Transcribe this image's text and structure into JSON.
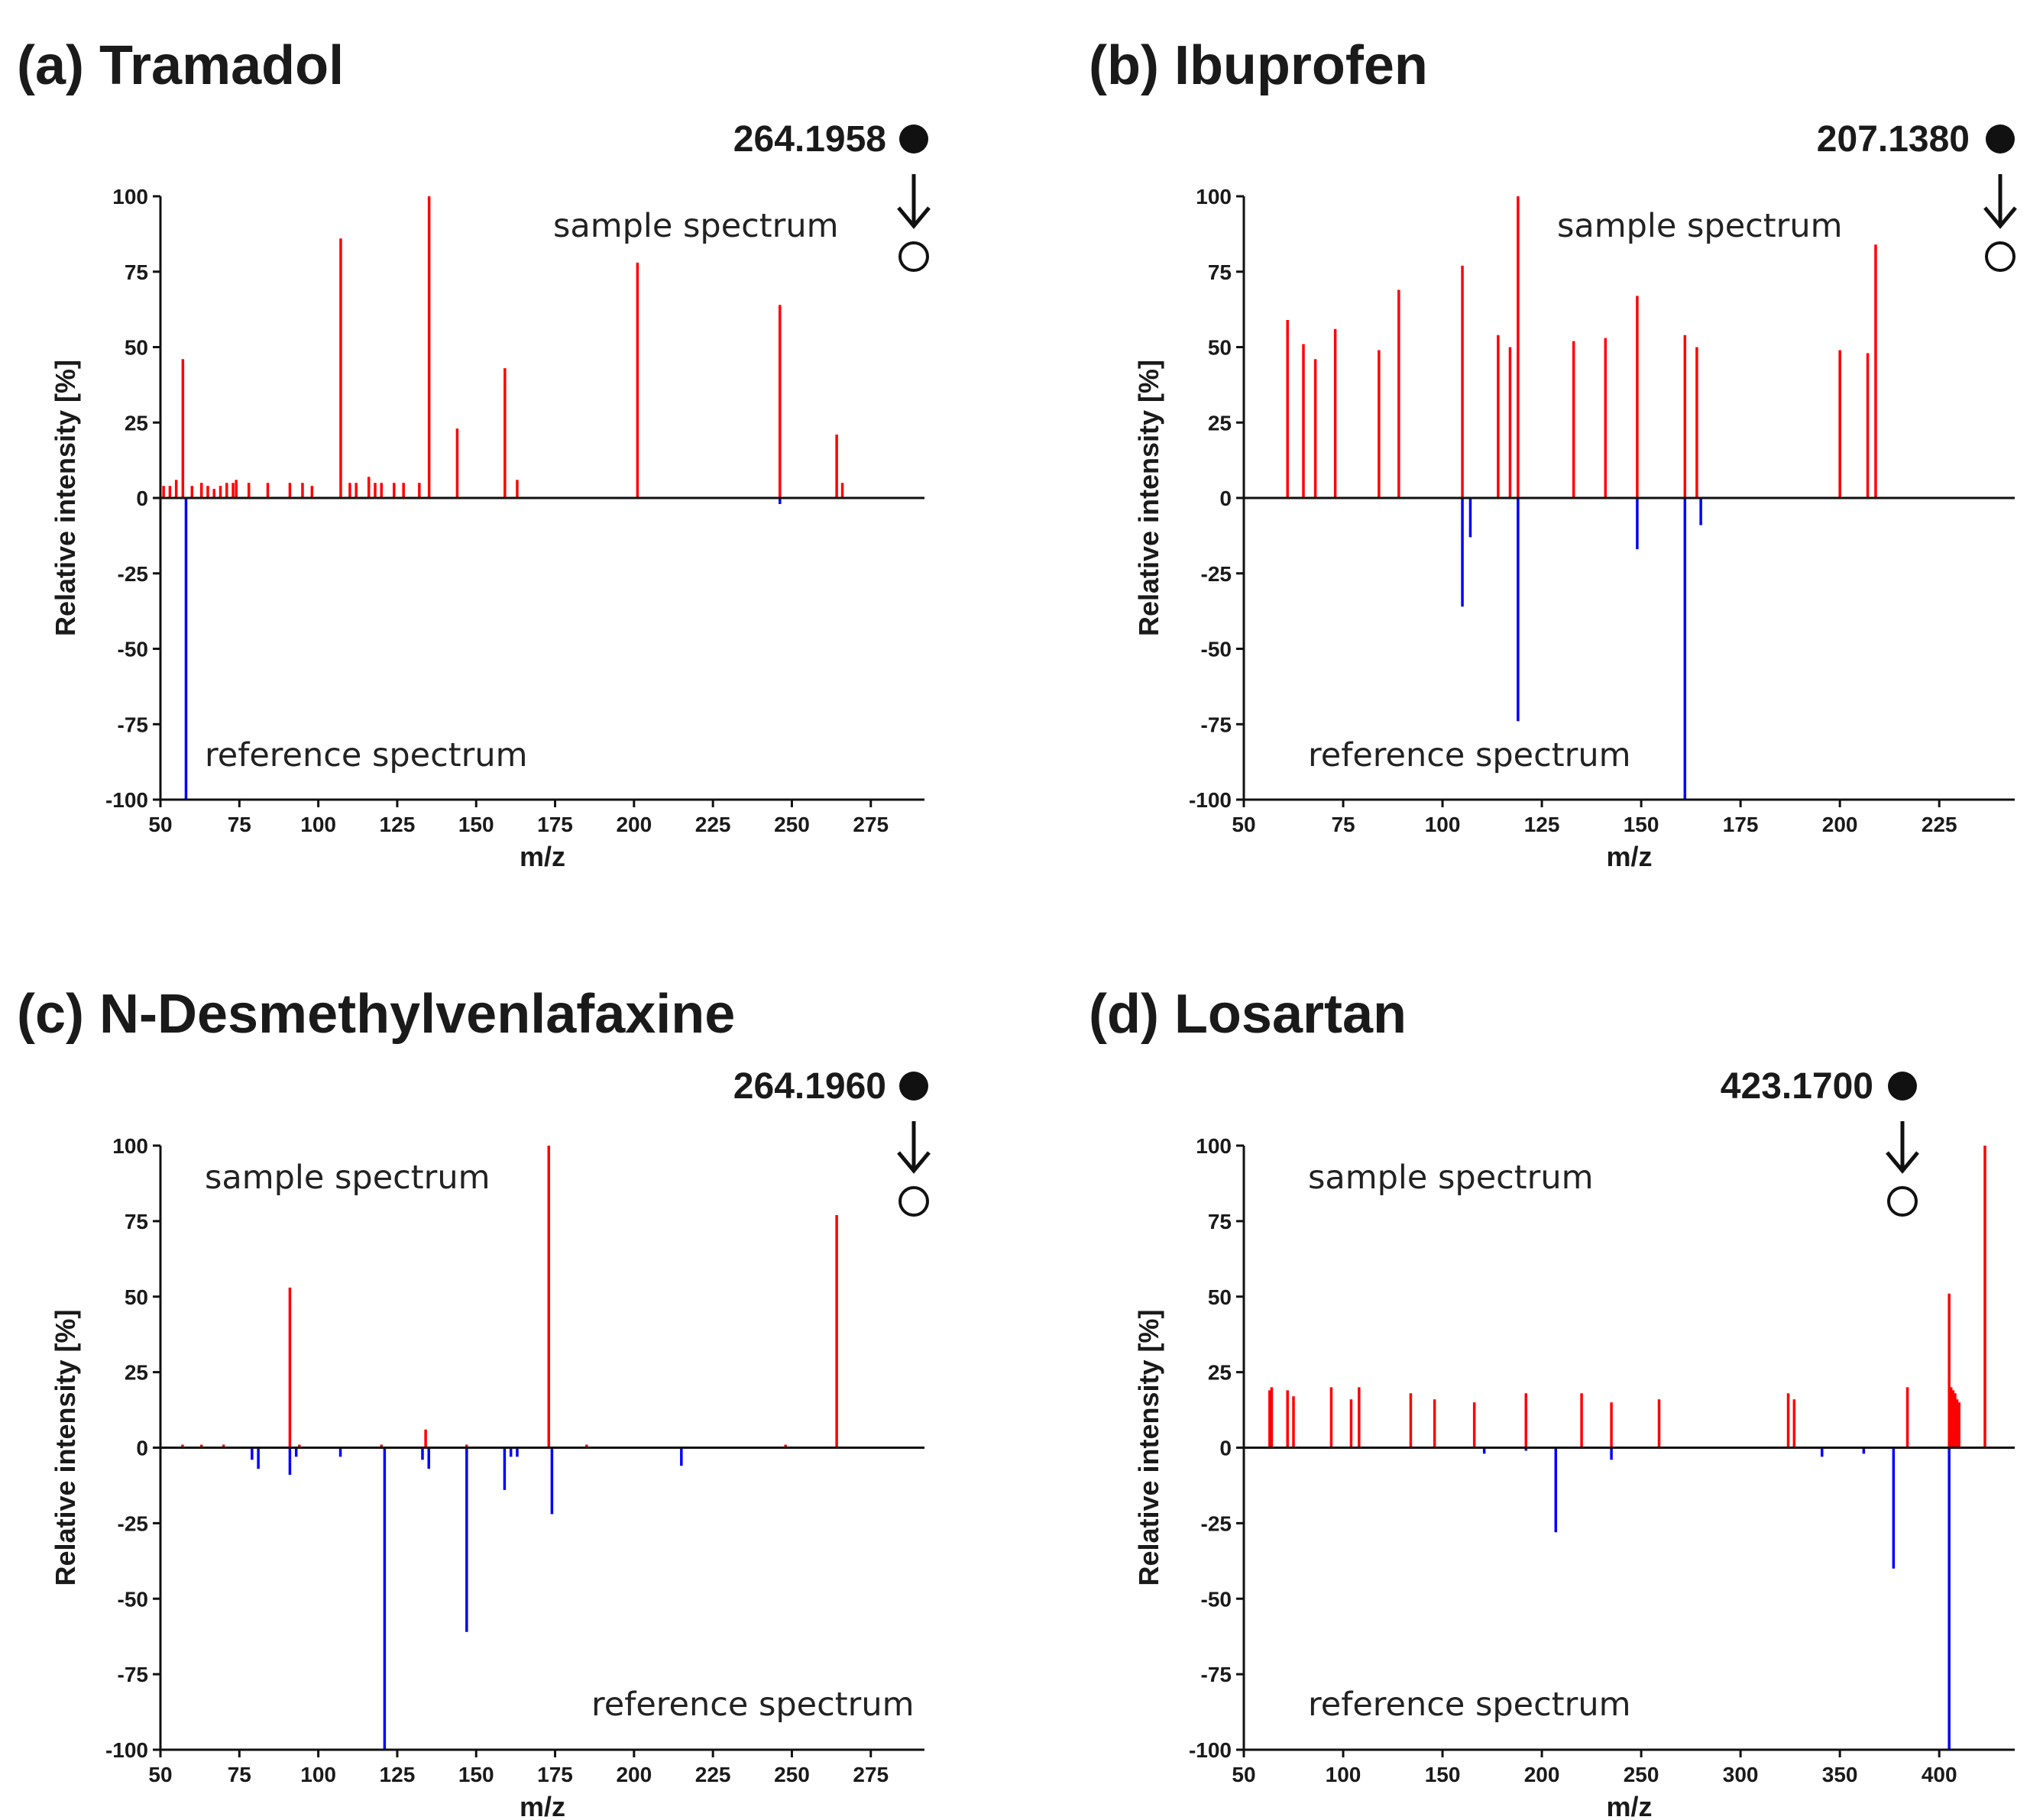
{
  "chart_data": [
    {
      "type": "bar",
      "title": "(a) Tramadol",
      "precursor_mz": "264.1958",
      "sample_label": "sample spectrum",
      "reference_label": "reference spectrum",
      "xlabel": "m/z",
      "ylabel": "Relative intensity [%]",
      "xlim": [
        50,
        292
      ],
      "ylim": [
        -100,
        100
      ],
      "xticks": [
        "50",
        "75",
        "100",
        "125",
        "150",
        "175",
        "200",
        "225",
        "250",
        "275"
      ],
      "yticks": [
        "100",
        "75",
        "50",
        "25",
        "0",
        "-25",
        "-50",
        "-75",
        "-100"
      ],
      "sample_color": "#ff0000",
      "reference_color": "#0000ff",
      "series": [
        {
          "name": "sample spectrum",
          "peaks": [
            [
              51,
              4
            ],
            [
              53,
              4
            ],
            [
              55,
              6
            ],
            [
              57.1,
              46
            ],
            [
              60,
              4
            ],
            [
              63,
              5
            ],
            [
              65,
              4
            ],
            [
              67,
              3
            ],
            [
              69,
              4
            ],
            [
              71,
              5
            ],
            [
              73,
              5
            ],
            [
              74,
              6
            ],
            [
              78,
              5
            ],
            [
              84,
              5
            ],
            [
              91,
              5
            ],
            [
              95,
              5
            ],
            [
              98,
              4
            ],
            [
              107.1,
              86
            ],
            [
              110,
              5
            ],
            [
              112,
              5
            ],
            [
              116,
              7
            ],
            [
              118,
              5
            ],
            [
              120,
              5
            ],
            [
              124,
              5
            ],
            [
              127,
              5
            ],
            [
              132,
              5
            ],
            [
              135.1,
              100
            ],
            [
              144,
              23
            ],
            [
              159.1,
              43
            ],
            [
              163,
              6
            ],
            [
              201.1,
              78
            ],
            [
              246.2,
              64
            ],
            [
              264.2,
              21
            ],
            [
              266,
              5
            ]
          ]
        },
        {
          "name": "reference spectrum",
          "peaks": [
            [
              58.1,
              100
            ],
            [
              246.2,
              2
            ]
          ]
        }
      ]
    },
    {
      "type": "bar",
      "title": "(b) Ibuprofen",
      "precursor_mz": "207.1380",
      "sample_label": "sample spectrum",
      "reference_label": "reference spectrum",
      "xlabel": "m/z",
      "ylabel": "Relative intensity [%]",
      "xlim": [
        50,
        244
      ],
      "ylim": [
        -100,
        100
      ],
      "xticks": [
        "50",
        "75",
        "100",
        "125",
        "150",
        "175",
        "200",
        "225"
      ],
      "yticks": [
        "100",
        "75",
        "50",
        "25",
        "0",
        "-25",
        "-50",
        "-75",
        "-100"
      ],
      "sample_color": "#ff0000",
      "reference_color": "#0000ff",
      "series": [
        {
          "name": "sample spectrum",
          "peaks": [
            [
              61,
              59
            ],
            [
              65,
              51
            ],
            [
              68,
              46
            ],
            [
              73,
              56
            ],
            [
              84,
              49
            ],
            [
              89,
              69
            ],
            [
              105,
              77
            ],
            [
              114,
              54
            ],
            [
              117,
              50
            ],
            [
              119,
              100
            ],
            [
              133,
              52
            ],
            [
              141,
              53
            ],
            [
              149,
              67
            ],
            [
              161,
              54
            ],
            [
              164,
              50
            ],
            [
              200,
              49
            ],
            [
              207,
              48
            ],
            [
              209,
              84
            ]
          ]
        },
        {
          "name": "reference spectrum",
          "peaks": [
            [
              105,
              36
            ],
            [
              107,
              13
            ],
            [
              119,
              74
            ],
            [
              149,
              17
            ],
            [
              161,
              100
            ],
            [
              165,
              9
            ]
          ]
        }
      ]
    },
    {
      "type": "bar",
      "title": "(c) N-Desmethylvenlafaxine",
      "precursor_mz": "264.1960",
      "sample_label": "sample spectrum",
      "reference_label": "reference spectrum",
      "xlabel": "m/z",
      "ylabel": "Relative intensity [%]",
      "xlim": [
        50,
        292
      ],
      "ylim": [
        -100,
        100
      ],
      "xticks": [
        "50",
        "75",
        "100",
        "125",
        "150",
        "175",
        "200",
        "225",
        "250",
        "275"
      ],
      "yticks": [
        "100",
        "75",
        "50",
        "25",
        "0",
        "-25",
        "-50",
        "-75",
        "-100"
      ],
      "sample_color": "#ff0000",
      "reference_color": "#0000ff",
      "series": [
        {
          "name": "sample spectrum",
          "peaks": [
            [
              57,
              1
            ],
            [
              63,
              1
            ],
            [
              70,
              1
            ],
            [
              91,
              53
            ],
            [
              94,
              1
            ],
            [
              120,
              1
            ],
            [
              134,
              6
            ],
            [
              147,
              1
            ],
            [
              173,
              100
            ],
            [
              185,
              1
            ],
            [
              248,
              1
            ],
            [
              264.2,
              77
            ]
          ]
        },
        {
          "name": "reference spectrum",
          "peaks": [
            [
              79,
              4
            ],
            [
              81,
              7
            ],
            [
              91,
              9
            ],
            [
              93,
              3
            ],
            [
              107,
              3
            ],
            [
              121,
              100
            ],
            [
              133,
              4
            ],
            [
              135,
              7
            ],
            [
              147,
              61
            ],
            [
              159,
              14
            ],
            [
              161,
              3
            ],
            [
              163,
              3
            ],
            [
              174,
              22
            ],
            [
              215,
              6
            ]
          ]
        }
      ]
    },
    {
      "type": "bar",
      "title": "(d) Losartan",
      "precursor_mz": "423.1700",
      "sample_label": "sample spectrum",
      "reference_label": "reference spectrum",
      "xlabel": "m/z",
      "ylabel": "Relative intensity [%]",
      "xlim": [
        50,
        438
      ],
      "ylim": [
        -100,
        100
      ],
      "xticks": [
        "50",
        "100",
        "150",
        "200",
        "250",
        "300",
        "350",
        "400"
      ],
      "yticks": [
        "100",
        "75",
        "50",
        "25",
        "0",
        "-25",
        "-50",
        "-75",
        "-100"
      ],
      "sample_color": "#ff0000",
      "reference_color": "#0000ff",
      "series": [
        {
          "name": "sample spectrum",
          "peaks": [
            [
              63,
              19
            ],
            [
              64,
              20
            ],
            [
              72,
              19
            ],
            [
              75,
              17
            ],
            [
              94,
              20
            ],
            [
              104,
              16
            ],
            [
              108,
              20
            ],
            [
              134,
              18
            ],
            [
              146,
              16
            ],
            [
              166,
              15
            ],
            [
              192,
              18
            ],
            [
              220,
              18
            ],
            [
              235,
              15
            ],
            [
              259,
              16
            ],
            [
              324,
              18
            ],
            [
              327,
              16
            ],
            [
              384,
              20
            ],
            [
              405,
              51
            ],
            [
              406,
              20
            ],
            [
              407,
              19
            ],
            [
              408,
              18
            ],
            [
              409,
              16
            ],
            [
              410,
              15
            ],
            [
              423,
              100
            ]
          ]
        },
        {
          "name": "reference spectrum",
          "peaks": [
            [
              171,
              2
            ],
            [
              192,
              1
            ],
            [
              207,
              28
            ],
            [
              235,
              4
            ],
            [
              341,
              3
            ],
            [
              362,
              2
            ],
            [
              377,
              40
            ],
            [
              405,
              100
            ]
          ]
        }
      ]
    }
  ]
}
